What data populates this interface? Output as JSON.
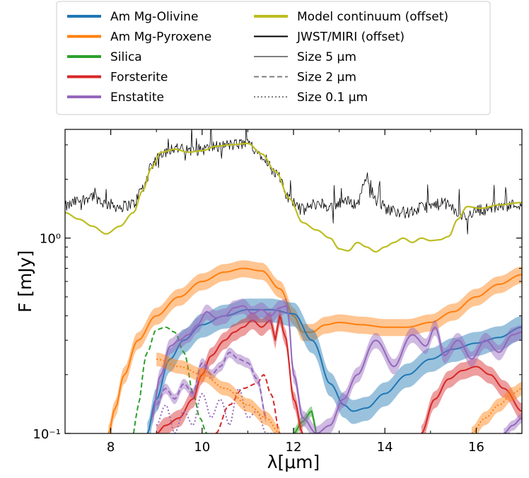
{
  "chart_data": {
    "type": "line",
    "title": "",
    "xlabel": "λ[μm]",
    "ylabel": "F [mJy]",
    "xlim": [
      7.0,
      17.0
    ],
    "ylim": [
      0.1,
      3.6
    ],
    "yscale": "log",
    "grid": false,
    "legend_position": "top-center",
    "x_ticks": [
      {
        "value": 8,
        "label": "8"
      },
      {
        "value": 10,
        "label": "10"
      },
      {
        "value": 12,
        "label": "12"
      },
      {
        "value": 14,
        "label": "14"
      },
      {
        "value": 16,
        "label": "16"
      }
    ],
    "y_ticks": [
      {
        "value": 0.1,
        "label": "10⁻¹"
      },
      {
        "value": 1.0,
        "label": "10⁰"
      }
    ],
    "legend": [
      {
        "label": "Am Mg-Olivine",
        "color": "#1f77b4",
        "style": "solid",
        "thick": true
      },
      {
        "label": "Am Mg-Pyroxene",
        "color": "#ff7f0e",
        "style": "solid",
        "thick": true
      },
      {
        "label": "Silica",
        "color": "#2ca02c",
        "style": "solid",
        "thick": true
      },
      {
        "label": "Forsterite",
        "color": "#d62728",
        "style": "solid",
        "thick": true
      },
      {
        "label": "Enstatite",
        "color": "#9467bd",
        "style": "solid",
        "thick": true
      },
      {
        "label": "Model continuum (offset)",
        "color": "#bcbd22",
        "style": "solid",
        "thick": true
      },
      {
        "label": "JWST/MIRI (offset)",
        "color": "#000000",
        "style": "solid",
        "thick": false
      },
      {
        "label": "Size 5 μm",
        "color": "#7f7f7f",
        "style": "solid",
        "thick": false
      },
      {
        "label": "Size 2 μm",
        "color": "#7f7f7f",
        "style": "dashed",
        "thick": false
      },
      {
        "label": "Size 0.1 μm",
        "color": "#7f7f7f",
        "style": "dotted",
        "thick": false
      }
    ],
    "series": [
      {
        "name": "JWST/MIRI (offset)",
        "color": "#000000",
        "width": 0.8,
        "dash": "",
        "noise": 0.07,
        "x": [
          7.0,
          7.3,
          7.6,
          7.9,
          8.2,
          8.5,
          8.7,
          8.9,
          9.1,
          9.4,
          9.7,
          10.0,
          10.3,
          10.6,
          11.0,
          11.3,
          11.6,
          11.9,
          12.2,
          12.5,
          12.8,
          13.1,
          13.4,
          13.6,
          13.8,
          14.1,
          14.5,
          14.9,
          15.3,
          15.7,
          16.1,
          16.5,
          17.0
        ],
        "y": [
          1.45,
          1.55,
          1.65,
          1.5,
          1.45,
          1.5,
          1.8,
          2.3,
          2.75,
          2.9,
          2.8,
          2.85,
          2.95,
          3.0,
          3.05,
          2.7,
          2.15,
          1.6,
          1.4,
          1.5,
          1.45,
          1.55,
          1.5,
          2.1,
          1.55,
          1.4,
          1.35,
          1.45,
          1.5,
          1.3,
          1.4,
          1.45,
          1.5
        ]
      },
      {
        "name": "Model continuum (offset)",
        "color": "#bcbd22",
        "width": 2.2,
        "dash": "",
        "x": [
          7.0,
          7.3,
          7.6,
          7.9,
          8.2,
          8.5,
          8.7,
          8.9,
          9.1,
          9.4,
          9.7,
          10.0,
          10.3,
          10.6,
          11.0,
          11.3,
          11.6,
          11.9,
          12.2,
          12.5,
          12.8,
          13.0,
          13.2,
          13.4,
          13.6,
          13.8,
          14.0,
          14.2,
          14.4,
          14.6,
          14.8,
          15.0,
          15.2,
          15.4,
          15.6,
          15.8,
          16.1,
          16.5,
          17.0
        ],
        "y": [
          1.35,
          1.25,
          1.15,
          1.05,
          1.15,
          1.35,
          1.75,
          2.3,
          2.75,
          2.85,
          2.75,
          2.8,
          2.95,
          3.0,
          3.05,
          2.7,
          2.2,
          1.6,
          1.2,
          1.1,
          1.0,
          0.88,
          0.86,
          0.95,
          0.9,
          0.85,
          0.9,
          0.95,
          1.0,
          0.95,
          1.0,
          0.97,
          0.98,
          1.02,
          1.25,
          1.45,
          1.42,
          1.48,
          1.52
        ]
      },
      {
        "name": "Am Mg-Pyroxene",
        "color": "#ff7f0e",
        "width": 2.0,
        "dash": "",
        "band": 0.1,
        "x": [
          7.95,
          8.1,
          8.3,
          8.6,
          9.0,
          9.5,
          10.0,
          10.5,
          10.9,
          11.3,
          11.7,
          12.0,
          12.2,
          12.4,
          12.7,
          13.0,
          13.5,
          14.0,
          14.5,
          15.0,
          15.5,
          16.0,
          16.5,
          17.0
        ],
        "y": [
          0.1,
          0.135,
          0.2,
          0.3,
          0.4,
          0.5,
          0.6,
          0.67,
          0.7,
          0.68,
          0.55,
          0.4,
          0.33,
          0.33,
          0.36,
          0.37,
          0.36,
          0.35,
          0.35,
          0.37,
          0.42,
          0.5,
          0.58,
          0.65
        ]
      },
      {
        "name": "Am Mg-Olivine",
        "color": "#1f77b4",
        "width": 2.0,
        "dash": "",
        "band": 0.14,
        "x": [
          8.8,
          9.0,
          9.3,
          9.6,
          10.0,
          10.5,
          11.0,
          11.5,
          12.0,
          12.4,
          12.8,
          13.1,
          13.3,
          13.6,
          14.0,
          14.5,
          15.0,
          15.5,
          16.0,
          16.5,
          17.0
        ],
        "y": [
          0.1,
          0.15,
          0.24,
          0.3,
          0.36,
          0.4,
          0.43,
          0.43,
          0.41,
          0.3,
          0.18,
          0.14,
          0.13,
          0.135,
          0.16,
          0.2,
          0.24,
          0.27,
          0.29,
          0.31,
          0.35
        ]
      },
      {
        "name": "Silica 2um",
        "color": "#2ca02c",
        "width": 2.0,
        "dash": "7,4",
        "x": [
          8.5,
          8.6,
          8.8,
          9.0,
          9.2,
          9.4,
          9.6,
          9.8,
          9.95,
          10.1
        ],
        "y": [
          0.1,
          0.14,
          0.26,
          0.34,
          0.35,
          0.33,
          0.26,
          0.16,
          0.12,
          0.1
        ]
      },
      {
        "name": "Silica 5um",
        "color": "#2ca02c",
        "width": 2.0,
        "dash": "",
        "band": 0.06,
        "x": [
          12.0,
          12.2,
          12.4,
          12.5
        ],
        "y": [
          0.1,
          0.115,
          0.13,
          0.1
        ]
      },
      {
        "name": "Forsterite 5um",
        "color": "#d62728",
        "width": 2.0,
        "dash": "",
        "band": 0.1,
        "x": [
          9.0,
          9.2,
          9.5,
          9.8,
          10.0,
          10.2,
          10.5,
          10.7,
          10.9,
          11.1,
          11.3,
          11.5,
          11.6,
          11.7,
          11.8,
          12.0,
          12.2
        ],
        "y": [
          0.1,
          0.11,
          0.12,
          0.15,
          0.2,
          0.25,
          0.3,
          0.33,
          0.35,
          0.38,
          0.35,
          0.38,
          0.3,
          0.4,
          0.32,
          0.15,
          0.1
        ]
      },
      {
        "name": "Forsterite 2um",
        "color": "#d62728",
        "width": 2.0,
        "dash": "7,4",
        "x": [
          10.3,
          10.6,
          10.9,
          11.2,
          11.35,
          11.5,
          11.7
        ],
        "y": [
          0.1,
          0.14,
          0.17,
          0.18,
          0.2,
          0.16,
          0.1
        ]
      },
      {
        "name": "Forsterite 5um right",
        "color": "#d62728",
        "width": 2.0,
        "dash": "",
        "band": 0.1,
        "x": [
          14.8,
          15.1,
          15.4,
          15.7,
          16.0,
          16.3,
          16.6,
          17.0
        ],
        "y": [
          0.1,
          0.15,
          0.19,
          0.21,
          0.22,
          0.2,
          0.17,
          0.13
        ]
      },
      {
        "name": "Enstatite 5um",
        "color": "#9467bd",
        "width": 2.0,
        "dash": "",
        "band": 0.09,
        "x": [
          8.9,
          9.1,
          9.3,
          9.5,
          9.7,
          9.9,
          10.1,
          10.3,
          10.5,
          10.7,
          10.9,
          11.1,
          11.3,
          11.5,
          11.7,
          11.85,
          12.0,
          12.2,
          12.5,
          12.8,
          13.1,
          13.4,
          13.8,
          14.2,
          14.6,
          14.9,
          15.1,
          15.3,
          15.6,
          15.9,
          16.2,
          16.5,
          16.8,
          17.0
        ],
        "y": [
          0.12,
          0.2,
          0.28,
          0.3,
          0.32,
          0.36,
          0.42,
          0.39,
          0.4,
          0.44,
          0.45,
          0.41,
          0.43,
          0.4,
          0.44,
          0.45,
          0.2,
          0.12,
          0.1,
          0.11,
          0.15,
          0.2,
          0.3,
          0.22,
          0.32,
          0.28,
          0.35,
          0.25,
          0.3,
          0.24,
          0.3,
          0.26,
          0.32,
          0.33
        ]
      },
      {
        "name": "Enstatite 2um",
        "color": "#9467bd",
        "width": 2.0,
        "dash": "7,4",
        "band": 0.06,
        "x": [
          9.0,
          9.2,
          9.4,
          9.6,
          9.8,
          10.0,
          10.2,
          10.4,
          10.6,
          10.8,
          11.0,
          11.2,
          11.4
        ],
        "y": [
          0.14,
          0.17,
          0.15,
          0.18,
          0.16,
          0.23,
          0.2,
          0.22,
          0.26,
          0.24,
          0.23,
          0.19,
          0.12
        ]
      },
      {
        "name": "Enstatite 0.1um",
        "color": "#9467bd",
        "width": 2.0,
        "dash": "2,3",
        "x": [
          9.0,
          9.2,
          9.4,
          9.6,
          9.8,
          10.0,
          10.2,
          10.4,
          10.6,
          10.8,
          11.0,
          11.2,
          11.4,
          11.6
        ],
        "y": [
          0.11,
          0.14,
          0.1,
          0.13,
          0.11,
          0.16,
          0.12,
          0.15,
          0.11,
          0.17,
          0.12,
          0.13,
          0.1,
          0.1
        ]
      },
      {
        "name": "Am Mg-Pyroxene 0.1um",
        "color": "#ff7f0e",
        "width": 2.0,
        "dash": "2,3",
        "band": 0.08,
        "x": [
          9.0,
          9.5,
          10.0,
          10.5,
          11.0,
          11.4,
          11.7
        ],
        "y": [
          0.24,
          0.22,
          0.2,
          0.17,
          0.14,
          0.12,
          0.1
        ]
      },
      {
        "name": "Am Mg-Pyroxene 0.1um right",
        "color": "#ff7f0e",
        "width": 2.0,
        "dash": "2,3",
        "band": 0.08,
        "x": [
          15.9,
          16.2,
          16.5,
          16.8,
          17.0
        ],
        "y": [
          0.1,
          0.12,
          0.14,
          0.16,
          0.17
        ]
      },
      {
        "name": "Enstatite right tail",
        "color": "#9467bd",
        "width": 2.0,
        "dash": "",
        "band": 0.06,
        "x": [
          16.6,
          16.8,
          17.0
        ],
        "y": [
          0.1,
          0.11,
          0.12
        ]
      }
    ]
  }
}
